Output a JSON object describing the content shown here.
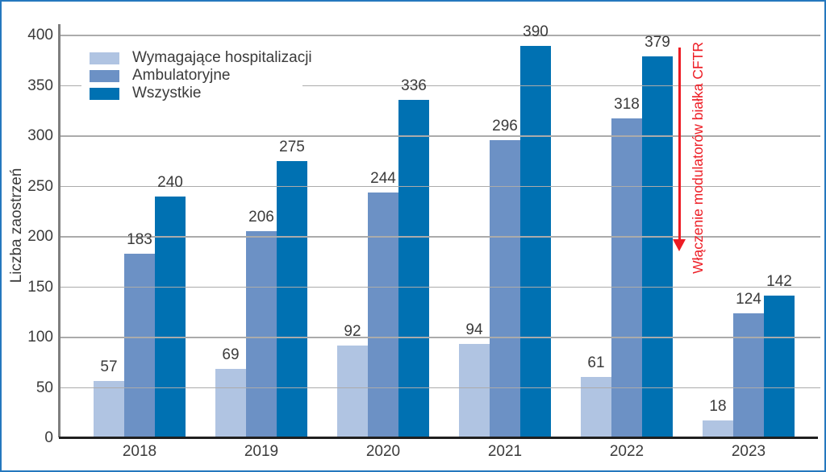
{
  "figure": {
    "border_color": "#2578be",
    "background": "#ffffff"
  },
  "colors": {
    "grid": "#ababab",
    "axis_line": "#7f7f7f",
    "baseline": "#1f1f1f",
    "text": "#3b3b3b"
  },
  "chart_data": {
    "type": "bar",
    "title": "",
    "xlabel": "",
    "ylabel": "Liczba zaostrzeń",
    "ylim": [
      0,
      400
    ],
    "yticks": [
      0,
      50,
      100,
      150,
      200,
      250,
      300,
      350,
      400
    ],
    "grid": true,
    "legend_position": "top-left-inside",
    "categories": [
      "2018",
      "2019",
      "2020",
      "2021",
      "2022",
      "2023"
    ],
    "series": [
      {
        "name": "Wymagające hospitalizacji",
        "color": "#b0c4e2",
        "values": [
          57,
          69,
          92,
          94,
          61,
          18
        ]
      },
      {
        "name": "Ambulatoryjne",
        "color": "#6c91c5",
        "values": [
          183,
          206,
          244,
          296,
          318,
          124
        ]
      },
      {
        "name": "Wszystkie",
        "color": "#0071b2",
        "values": [
          240,
          275,
          336,
          390,
          379,
          142
        ]
      }
    ],
    "annotation": {
      "text": "Włączenie modulatorów białka CFTR",
      "color": "#ed1c24",
      "arrow_direction": "down",
      "position": "right-of-2022-group"
    }
  }
}
